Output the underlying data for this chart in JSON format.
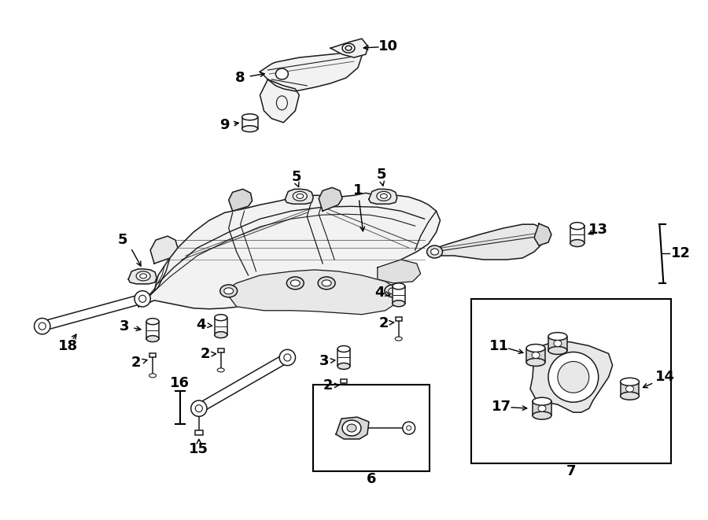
{
  "bg_color": "#ffffff",
  "fig_width": 9.0,
  "fig_height": 6.61,
  "dpi": 100,
  "line_color": "#1a1a1a",
  "lw": 1.1
}
